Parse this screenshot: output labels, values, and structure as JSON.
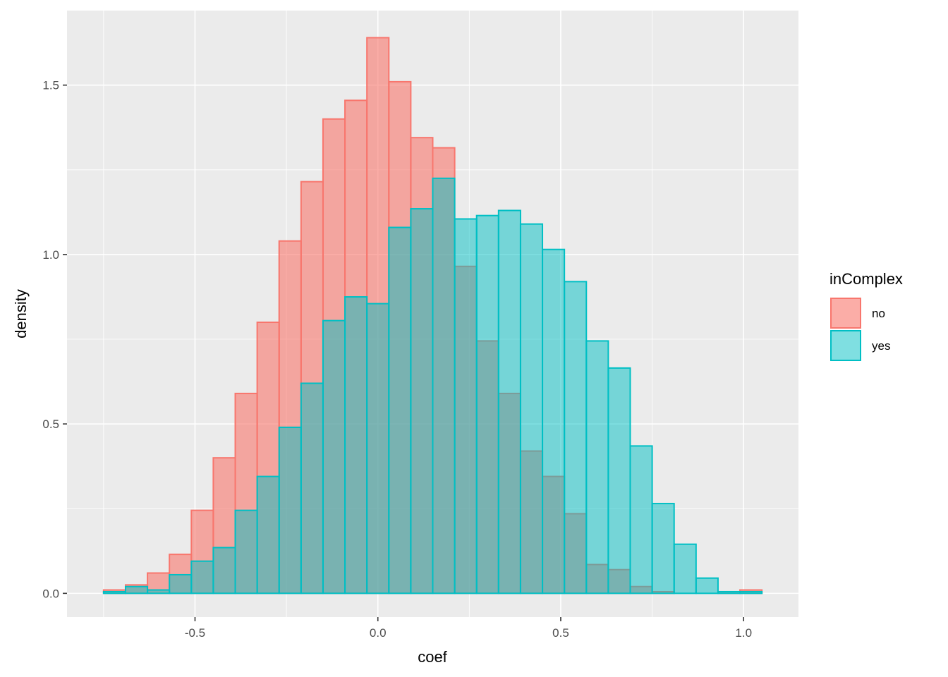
{
  "chart_data": {
    "type": "histogram",
    "xlabel": "coef",
    "ylabel": "density",
    "xlim": [
      -0.85,
      1.15
    ],
    "ylim": [
      -0.07,
      1.72
    ],
    "x_breaks": [
      -0.5,
      0.0,
      0.5,
      1.0
    ],
    "x_tick_labels": [
      "-0.5",
      "0.0",
      "0.5",
      "1.0"
    ],
    "y_breaks": [
      0.0,
      0.5,
      1.0,
      1.5
    ],
    "y_tick_labels": [
      "0.0",
      "0.5",
      "1.0",
      "1.5"
    ],
    "bin_start": -0.75,
    "bin_width": 0.06,
    "grid": true,
    "legend": {
      "title": "inComplex",
      "position": "right"
    },
    "series": [
      {
        "name": "no",
        "fill": "#F8766D",
        "stroke": "#F8766D",
        "values": [
          0.01,
          0.025,
          0.06,
          0.115,
          0.245,
          0.4,
          0.59,
          0.8,
          1.04,
          1.215,
          1.4,
          1.455,
          1.64,
          1.51,
          1.345,
          1.315,
          0.965,
          0.745,
          0.59,
          0.42,
          0.345,
          0.235,
          0.085,
          0.07,
          0.02,
          0.005,
          0.0,
          0.0,
          0.005,
          0.01
        ]
      },
      {
        "name": "yes",
        "fill": "#00BFC4",
        "stroke": "#00BFC4",
        "values": [
          0.005,
          0.02,
          0.01,
          0.055,
          0.095,
          0.135,
          0.245,
          0.345,
          0.49,
          0.62,
          0.805,
          0.875,
          0.855,
          1.08,
          1.135,
          1.225,
          1.105,
          1.115,
          1.13,
          1.09,
          1.015,
          0.92,
          0.745,
          0.665,
          0.435,
          0.265,
          0.145,
          0.045,
          0.005,
          0.005
        ]
      }
    ]
  }
}
